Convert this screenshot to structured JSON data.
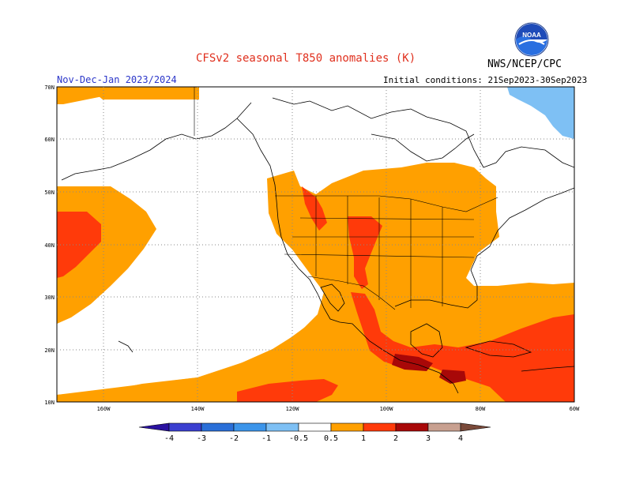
{
  "header": {
    "title": "CFSv2 seasonal T850 anomalies (K)",
    "period": "Nov-Dec-Jan 2023/2024",
    "initial_conditions": "Initial conditions: 21Sep2023-30Sep2023",
    "agency": "NWS/NCEP/CPC",
    "logo_text": "NOAA"
  },
  "map": {
    "lat_labels": [
      "70N",
      "60N",
      "50N",
      "40N",
      "30N",
      "20N",
      "10N"
    ],
    "lon_labels": [
      "160W",
      "140W",
      "120W",
      "100W",
      "80W",
      "60W"
    ]
  },
  "colorbar": {
    "tick_labels": [
      "-4",
      "-3",
      "-2",
      "-1",
      "-0.5",
      "0.5",
      "1",
      "2",
      "3",
      "4"
    ],
    "colors": {
      "lt_m4": "#2a12a0",
      "m4_m3": "#3b3fd0",
      "m3_m2": "#2a6fd8",
      "m2_m1": "#3c95ea",
      "m1_m05": "#7ec0f4",
      "neutral": "#ffffff",
      "p05_p1": "#ffa000",
      "p1_p2": "#ff3a0a",
      "p2_p3": "#a80808",
      "p3_p4": "#c8a090",
      "gt_p4": "#7a4a3a"
    }
  }
}
